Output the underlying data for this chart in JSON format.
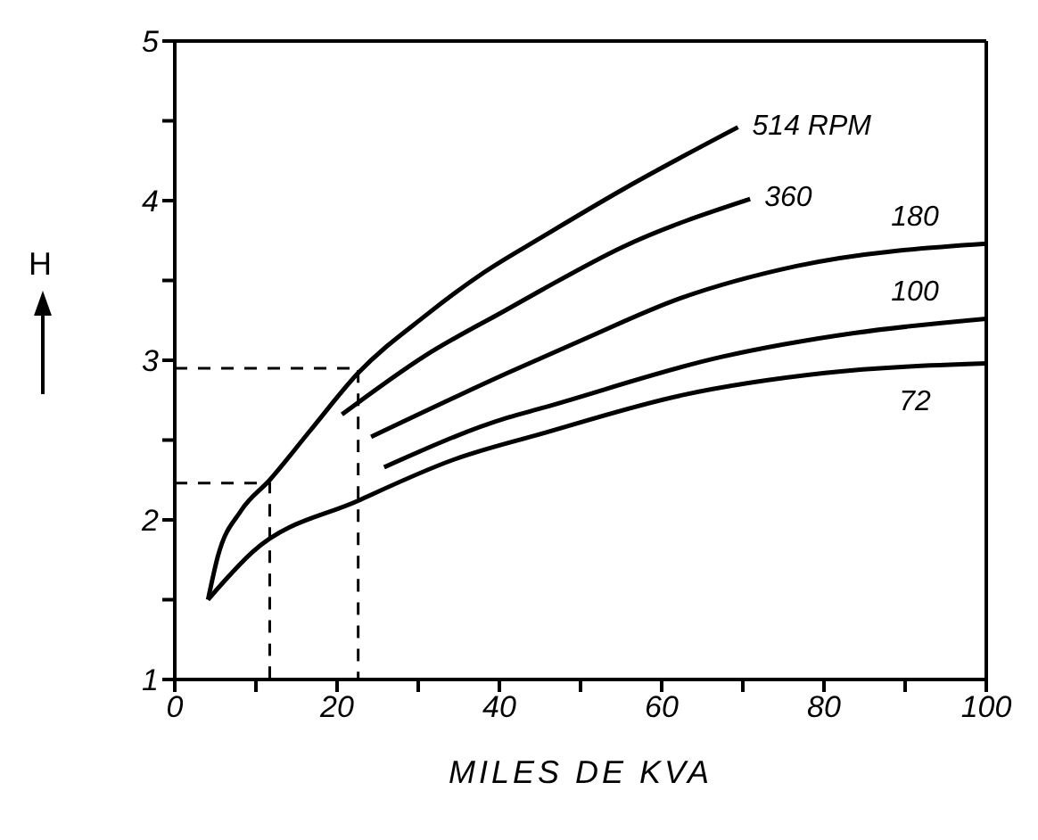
{
  "chart_data": {
    "type": "line",
    "xlabel": "MILES DE KVA",
    "ylabel": "H",
    "marker": "none",
    "line_style": "solid",
    "xlim": [
      0,
      100
    ],
    "xticks": [
      0,
      {
        "value": 10,
        "label": null
      },
      20,
      {
        "value": 30,
        "label": null
      },
      40,
      {
        "value": 50,
        "label": null
      },
      60,
      {
        "value": 70,
        "label": null
      },
      80,
      {
        "value": 90,
        "label": null
      },
      100
    ],
    "ylim": [
      1,
      5
    ],
    "yticks": [
      1,
      {
        "value": 1.5,
        "label": null
      },
      2,
      {
        "value": 2.5,
        "label": null
      },
      3,
      {
        "value": 3.5,
        "label": null
      },
      4,
      {
        "value": 4.5,
        "label": null
      },
      5
    ],
    "series": [
      {
        "name": "514 RPM",
        "color": "#000000",
        "x": [
          4.1,
          5.3,
          8.2,
          11.7,
          16.7,
          22.6,
          30.9,
          38.1,
          45.2,
          55.2,
          69.4
        ],
        "values": [
          1.5,
          1.77,
          2.06,
          2.25,
          2.56,
          2.92,
          3.28,
          3.55,
          3.77,
          4.07,
          4.46
        ]
      },
      {
        "name": "360",
        "color": "#000000",
        "x": [
          20.6,
          30.9,
          41,
          45.2,
          55.2,
          70.9
        ],
        "values": [
          2.66,
          3.03,
          3.32,
          3.44,
          3.71,
          4.01
        ]
      },
      {
        "name": "180",
        "color": "#000000",
        "x": [
          24.2,
          41,
          49.9,
          62.4,
          76.6,
          100
        ],
        "values": [
          2.52,
          2.92,
          3.12,
          3.39,
          3.59,
          3.73
        ]
      },
      {
        "name": "100",
        "color": "#000000",
        "x": [
          25.8,
          41,
          45.2,
          67.3,
          83.7,
          100
        ],
        "values": [
          2.33,
          2.64,
          2.7,
          3.02,
          3.17,
          3.26
        ]
      },
      {
        "name": "72",
        "color": "#000000",
        "x": [
          4.1,
          9.6,
          22.6,
          34.5,
          45.2,
          62.4,
          80.1,
          100
        ],
        "values": [
          1.5,
          1.8,
          2.12,
          2.38,
          2.54,
          2.78,
          2.92,
          2.98
        ]
      },
      {
        "type": "line",
        "line_style": "dashed",
        "color": "#000000",
        "x": [
          0,
          11.7,
          11.7
        ],
        "values": [
          2.23,
          2.23,
          1
        ]
      },
      {
        "type": "line",
        "line_style": "dashed",
        "color": "#000000",
        "x": [
          0,
          22.6,
          22.6
        ],
        "values": [
          2.95,
          2.95,
          1
        ]
      }
    ]
  }
}
